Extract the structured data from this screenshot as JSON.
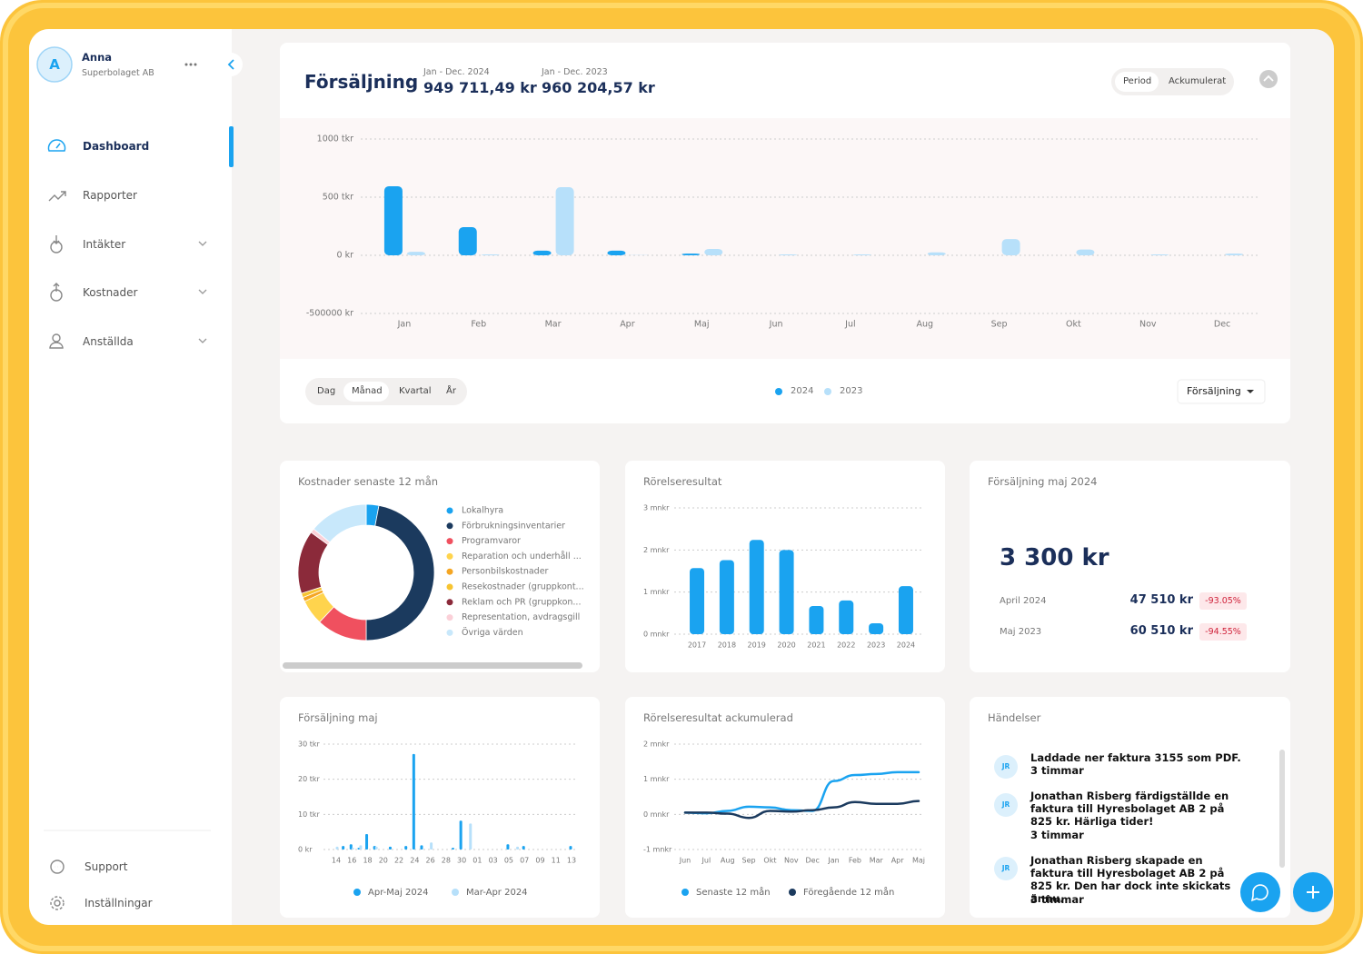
{
  "sidebar": {
    "user": {
      "initial": "A",
      "name": "Anna",
      "company": "Superbolaget AB"
    },
    "nav": [
      "Dashboard",
      "Rapporter",
      "Intäkter",
      "Kostnader",
      "Anställda"
    ],
    "footer": [
      "Support",
      "Inställningar"
    ]
  },
  "sales_header": {
    "title": "Försäljning",
    "periods": [
      {
        "label": "Jan - Dec. 2024",
        "value": "949 711,49 kr"
      },
      {
        "label": "Jan - Dec. 2023",
        "value": "960 204,57 kr"
      }
    ],
    "toggle": [
      "Period",
      "Ackumulerat"
    ]
  },
  "controls": {
    "granularity": [
      "Dag",
      "Månad",
      "Kvartal",
      "År"
    ],
    "metric": "Försäljning"
  },
  "chart_data": [
    {
      "type": "bar",
      "categories": [
        "Jan",
        "Feb",
        "Mar",
        "Apr",
        "Maj",
        "Jun",
        "Jul",
        "Aug",
        "Sep",
        "Okt",
        "Nov",
        "Dec"
      ],
      "series": [
        {
          "name": "2024",
          "color": "#1aa3f0",
          "values": [
            594000,
            242000,
            40000,
            40000,
            15000,
            0,
            0,
            0,
            0,
            0,
            0,
            0
          ]
        },
        {
          "name": "2023",
          "color": "#b7e0fa",
          "values": [
            30000,
            8000,
            586000,
            2000,
            55000,
            8000,
            8000,
            25000,
            140000,
            50000,
            8000,
            15000
          ]
        }
      ],
      "ylim": [
        -500000,
        1000000
      ],
      "yticks": [
        {
          "value": -500000,
          "label": "-500000 kr"
        },
        {
          "value": 0,
          "label": "0 kr"
        },
        {
          "value": 500000,
          "label": "500 tkr"
        },
        {
          "value": 1000000,
          "label": "1000 tkr"
        }
      ],
      "grid": true,
      "legend": "bottom"
    },
    {
      "type": "pie",
      "title": "Kostnader senaste 12 mån",
      "labels": [
        "Lokalhyra",
        "Förbrukningsinventarier",
        "Programvaror",
        "Reparation och underhåll ...",
        "Personbilskostnader",
        "Resekostnader (gruppkont...",
        "Reklam och PR (gruppkon...",
        "Representation, avdragsgill",
        "Övriga värden"
      ],
      "values": [
        3,
        47,
        12,
        6,
        1,
        1,
        15,
        1,
        14
      ],
      "colors": [
        "#1aa3f0",
        "#1b3a5e",
        "#f0505f",
        "#ffd44d",
        "#f5a623",
        "#f7c431",
        "#8b2a3a",
        "#fbd0d8",
        "#c8e8fb"
      ],
      "legend": "right"
    },
    {
      "type": "bar",
      "title": "Rörelseresultat",
      "categories": [
        "2017",
        "2018",
        "2019",
        "2020",
        "2021",
        "2022",
        "2023",
        "2024"
      ],
      "values": [
        1570000,
        1760000,
        2240000,
        2000000,
        670000,
        800000,
        260000,
        1140000
      ],
      "color": "#1aa3f0",
      "ylim": [
        0,
        3000000
      ],
      "yticks": [
        {
          "value": 0,
          "label": "0 mnkr"
        },
        {
          "value": 1000000,
          "label": "1 mnkr"
        },
        {
          "value": 2000000,
          "label": "2 mnkr"
        },
        {
          "value": 3000000,
          "label": "3 mnkr"
        }
      ],
      "grid": true
    },
    {
      "type": "bar",
      "title": "Försäljning maj",
      "categories": [
        "14",
        null,
        "16",
        null,
        "18",
        null,
        "20",
        null,
        "22",
        null,
        "24",
        null,
        "26",
        null,
        "28",
        null,
        "30",
        null,
        "01",
        null,
        "03",
        null,
        "05",
        null,
        "07",
        null,
        "09",
        null,
        "11",
        null,
        "13"
      ],
      "series": [
        {
          "name": "Apr-Maj 2024",
          "color": "#1aa3f0",
          "values": [
            0,
            1000,
            1500,
            500,
            4400,
            1000,
            0,
            800,
            0,
            1000,
            27200,
            1200,
            0,
            0,
            0,
            500,
            8200,
            0,
            0,
            0,
            0,
            0,
            1500,
            0,
            1000,
            0,
            0,
            0,
            0,
            0,
            1000
          ]
        },
        {
          "name": "Mar-Apr 2024",
          "color": "#b7e0fa",
          "values": [
            800,
            0,
            500,
            1200,
            0,
            800,
            0,
            0,
            0,
            0,
            0,
            0,
            2000,
            0,
            0,
            0,
            0,
            7400,
            0,
            0,
            0,
            0,
            0,
            800,
            0,
            0,
            0,
            0,
            0,
            0,
            0
          ]
        }
      ],
      "ylim": [
        0,
        30000
      ],
      "yticks": [
        {
          "value": 0,
          "label": "0 kr"
        },
        {
          "value": 10000,
          "label": "10 tkr"
        },
        {
          "value": 20000,
          "label": "20 tkr"
        },
        {
          "value": 30000,
          "label": "30 tkr"
        }
      ],
      "grid": true,
      "legend": "bottom"
    },
    {
      "type": "line",
      "title": "Rörelseresultat ackumulerad",
      "categories": [
        "Jun",
        "Jul",
        "Aug",
        "Sep",
        "Okt",
        "Nov",
        "Dec",
        "Jan",
        "Feb",
        "Mar",
        "Apr",
        "Maj"
      ],
      "series": [
        {
          "name": "Senaste 12 mån",
          "color": "#1aa3f0",
          "values": [
            50000,
            30000,
            100000,
            220000,
            200000,
            120000,
            100000,
            950000,
            1120000,
            1150000,
            1200000,
            1200000
          ]
        },
        {
          "name": "Föregående 12 mån",
          "color": "#1b3a5e",
          "values": [
            50000,
            50000,
            20000,
            -100000,
            100000,
            80000,
            120000,
            200000,
            350000,
            300000,
            300000,
            380000
          ]
        }
      ],
      "ylim": [
        -1000000,
        2000000
      ],
      "yticks": [
        {
          "value": -1000000,
          "label": "-1 mnkr"
        },
        {
          "value": 0,
          "label": "0 mnkr"
        },
        {
          "value": 1000000,
          "label": "1 mnkr"
        },
        {
          "value": 2000000,
          "label": "2 mnkr"
        }
      ],
      "grid": true,
      "legend": "bottom"
    }
  ],
  "kpi": {
    "title": "Försäljning maj 2024",
    "value": "3 300 kr",
    "rows": [
      {
        "label": "April 2024",
        "value": "47 510 kr",
        "change": "-93.05%"
      },
      {
        "label": "Maj 2023",
        "value": "60 510 kr",
        "change": "-94.55%"
      }
    ]
  },
  "events": {
    "title": "Händelser",
    "items": [
      {
        "initials": "JR",
        "text": "Laddade ner faktura 3155 som PDF.",
        "time": "3 timmar"
      },
      {
        "initials": "JR",
        "text": "Jonathan Risberg färdigställde en faktura till Hyresbolaget AB 2 på 825 kr. Härliga tider!",
        "time": "3 timmar"
      },
      {
        "initials": "JR",
        "text": "Jonathan Risberg skapade en faktura till Hyresbolaget AB 2 på 825 kr. Den har dock inte skickats ännu.",
        "time": "3 timmar"
      }
    ]
  }
}
